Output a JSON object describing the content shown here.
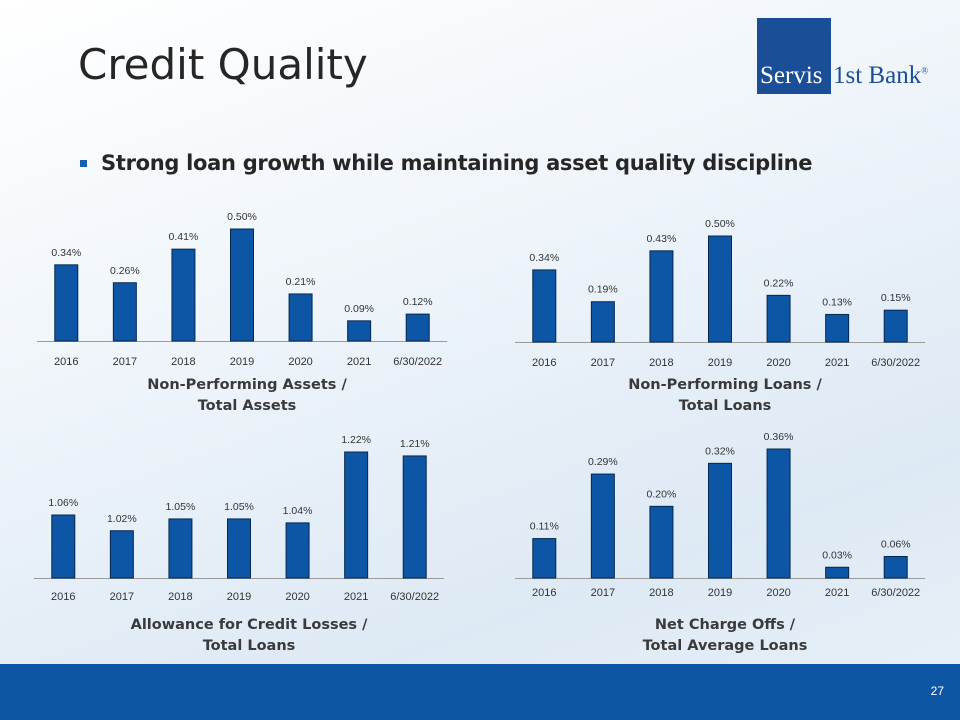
{
  "slide": {
    "title": "Credit Quality",
    "bullet": "Strong loan growth while maintaining asset quality discipline",
    "page_number": "27"
  },
  "logo": {
    "part1": "Servis",
    "part2": "1st Bank",
    "mark": "®"
  },
  "colors": {
    "bar": "#0d56a6",
    "brand": "#1a4e96",
    "footer": "#0e55a4"
  },
  "chart_data": [
    {
      "type": "bar",
      "title": "Non-Performing Assets / Total Assets",
      "caption_line1": "Non-Performing Assets /",
      "caption_line2": "Total Assets",
      "categories": [
        "2016",
        "2017",
        "2018",
        "2019",
        "2020",
        "2021",
        "6/30/2022"
      ],
      "values": [
        0.34,
        0.26,
        0.41,
        0.5,
        0.21,
        0.09,
        0.12
      ],
      "labels": [
        "0.34%",
        "0.26%",
        "0.41%",
        "0.50%",
        "0.21%",
        "0.09%",
        "0.12%"
      ],
      "ylim": [
        0,
        0.5
      ]
    },
    {
      "type": "bar",
      "title": "Non-Performing Loans / Total Loans",
      "caption_line1": "Non-Performing Loans /",
      "caption_line2": "Total Loans",
      "categories": [
        "2016",
        "2017",
        "2018",
        "2019",
        "2020",
        "2021",
        "6/30/2022"
      ],
      "values": [
        0.34,
        0.19,
        0.43,
        0.5,
        0.22,
        0.13,
        0.15
      ],
      "labels": [
        "0.34%",
        "0.19%",
        "0.43%",
        "0.50%",
        "0.22%",
        "0.13%",
        "0.15%"
      ],
      "ylim": [
        0,
        0.5
      ]
    },
    {
      "type": "bar",
      "title": "Allowance for Credit Losses / Total Loans",
      "caption_line1": "Allowance for Credit Losses /",
      "caption_line2": "Total Loans",
      "categories": [
        "2016",
        "2017",
        "2018",
        "2019",
        "2020",
        "2021",
        "6/30/2022"
      ],
      "values": [
        1.06,
        1.02,
        1.05,
        1.05,
        1.04,
        1.22,
        1.21
      ],
      "labels": [
        "1.06%",
        "1.02%",
        "1.05%",
        "1.05%",
        "1.04%",
        "1.22%",
        "1.21%"
      ],
      "ylim": [
        0.9,
        1.22
      ]
    },
    {
      "type": "bar",
      "title": "Net Charge Offs / Total Average Loans",
      "caption_line1": "Net Charge Offs /",
      "caption_line2": "Total Average Loans",
      "categories": [
        "2016",
        "2017",
        "2018",
        "2019",
        "2020",
        "2021",
        "6/30/2022"
      ],
      "values": [
        0.11,
        0.29,
        0.2,
        0.32,
        0.36,
        0.03,
        0.06
      ],
      "labels": [
        "0.11%",
        "0.29%",
        "0.20%",
        "0.32%",
        "0.36%",
        "0.03%",
        "0.06%"
      ],
      "ylim": [
        0,
        0.36
      ]
    }
  ]
}
